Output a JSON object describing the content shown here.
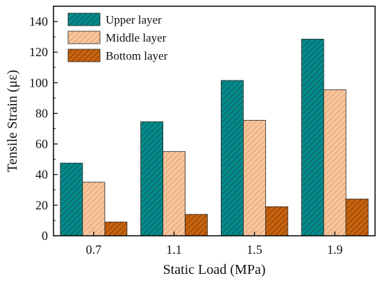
{
  "chart_data": {
    "type": "bar",
    "title": "",
    "xlabel": "Static Load (MPa)",
    "ylabel": "Tensile Strain (με)",
    "categories": [
      "0.7",
      "1.1",
      "1.5",
      "1.9"
    ],
    "ylim": [
      0,
      150
    ],
    "yticks": [
      0,
      20,
      40,
      60,
      80,
      100,
      120,
      140
    ],
    "grid": false,
    "legend_position": "top-left",
    "series": [
      {
        "name": "Upper layer",
        "values": [
          47.5,
          74.5,
          101.5,
          128.5
        ],
        "color": "#008c8c",
        "hatch": "#1f4f4f"
      },
      {
        "name": "Middle layer",
        "values": [
          35,
          55,
          75.5,
          95.5
        ],
        "color": "#f8c59b",
        "hatch": "#d99a6a"
      },
      {
        "name": "Bottom layer",
        "values": [
          9,
          14,
          19,
          24
        ],
        "color": "#c8630e",
        "hatch": "#7a3a05"
      }
    ]
  }
}
